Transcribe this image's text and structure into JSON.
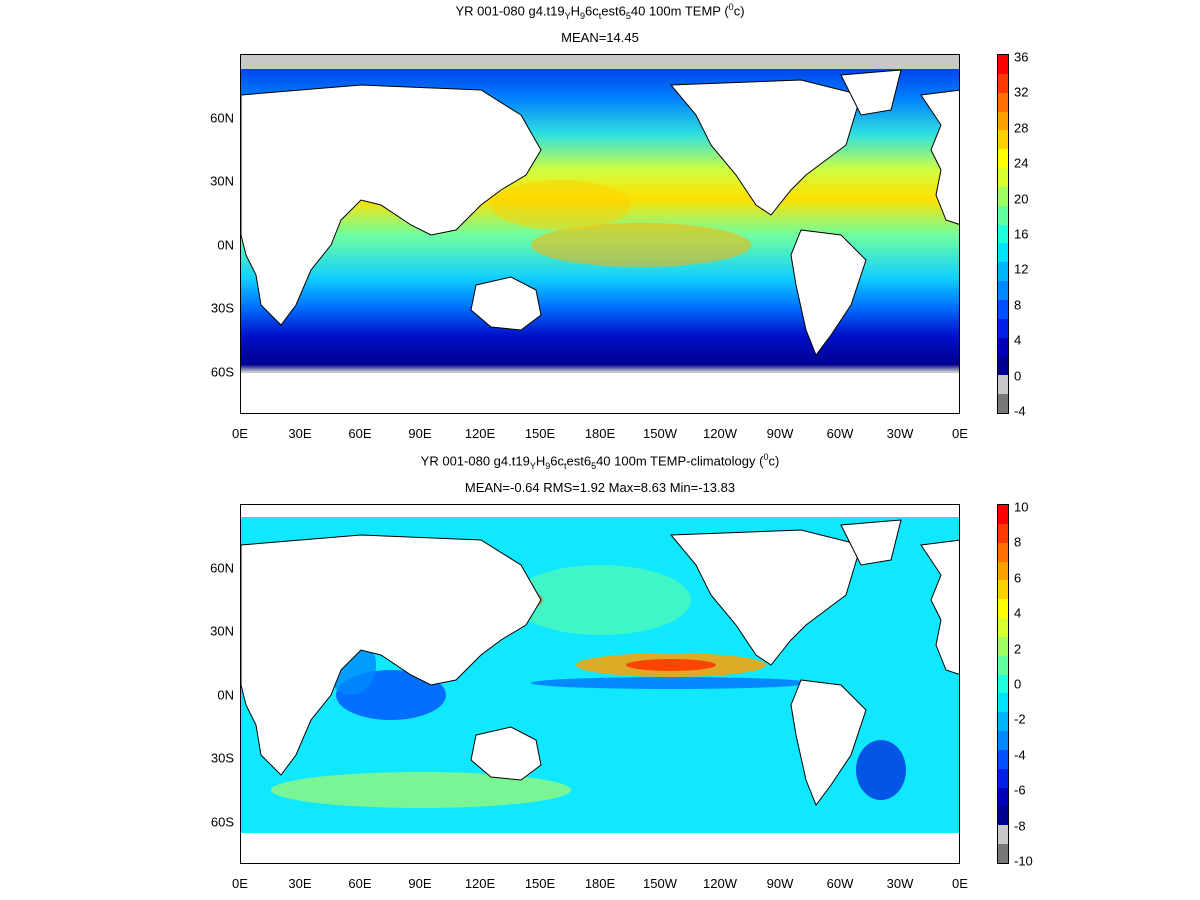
{
  "panels": [
    {
      "id": "top",
      "title_html": "YR 001-080 g4.t19<sub>Y</sub>H<sub>9</sub>6c<sub>t</sub>est6<sub>5</sub>40 100m TEMP (<sup>0</sup>c)",
      "subtitle": "MEAN=14.45",
      "x_ticks": [
        "0E",
        "30E",
        "60E",
        "90E",
        "120E",
        "150E",
        "180E",
        "150W",
        "120W",
        "90W",
        "60W",
        "30W",
        "0E"
      ],
      "y_ticks": [
        "60N",
        "30N",
        "0N",
        "30S",
        "60S"
      ],
      "colorbar": {
        "labels": [
          "36",
          "32",
          "28",
          "24",
          "20",
          "16",
          "12",
          "8",
          "4",
          "0",
          "-4"
        ],
        "colors": [
          "#ff0000",
          "#ff3a00",
          "#ff7000",
          "#ffa000",
          "#ffd000",
          "#ffff00",
          "#d8ff30",
          "#a0ff60",
          "#60ffa0",
          "#20ffe0",
          "#00e0ff",
          "#00b4ff",
          "#0088ff",
          "#0050ff",
          "#0020e8",
          "#0000b8",
          "#000090",
          "#c8c8c8",
          "#787878"
        ]
      }
    },
    {
      "id": "bottom",
      "title_html": "YR 001-080 g4.t19<sub>Y</sub>H<sub>9</sub>6c<sub>t</sub>est6<sub>5</sub>40 100m TEMP-climatology (<sup>0</sup>c)",
      "subtitle": "MEAN=-0.64   RMS=1.92   Max=8.63   Min=-13.83",
      "x_ticks": [
        "0E",
        "30E",
        "60E",
        "90E",
        "120E",
        "150E",
        "180E",
        "150W",
        "120W",
        "90W",
        "60W",
        "30W",
        "0E"
      ],
      "y_ticks": [
        "60N",
        "30N",
        "0N",
        "30S",
        "60S"
      ],
      "colorbar": {
        "labels": [
          "10",
          "8",
          "6",
          "4",
          "2",
          "0",
          "-2",
          "-4",
          "-6",
          "-8",
          "-10"
        ],
        "colors": [
          "#ff0000",
          "#ff3a00",
          "#ff7000",
          "#ffa000",
          "#ffd000",
          "#ffff00",
          "#d8ff30",
          "#a0ff60",
          "#60ffa0",
          "#20ffe0",
          "#00e0ff",
          "#00b4ff",
          "#0088ff",
          "#0050ff",
          "#0020e8",
          "#0000b8",
          "#000090",
          "#c8c8c8",
          "#787878"
        ]
      }
    }
  ]
}
